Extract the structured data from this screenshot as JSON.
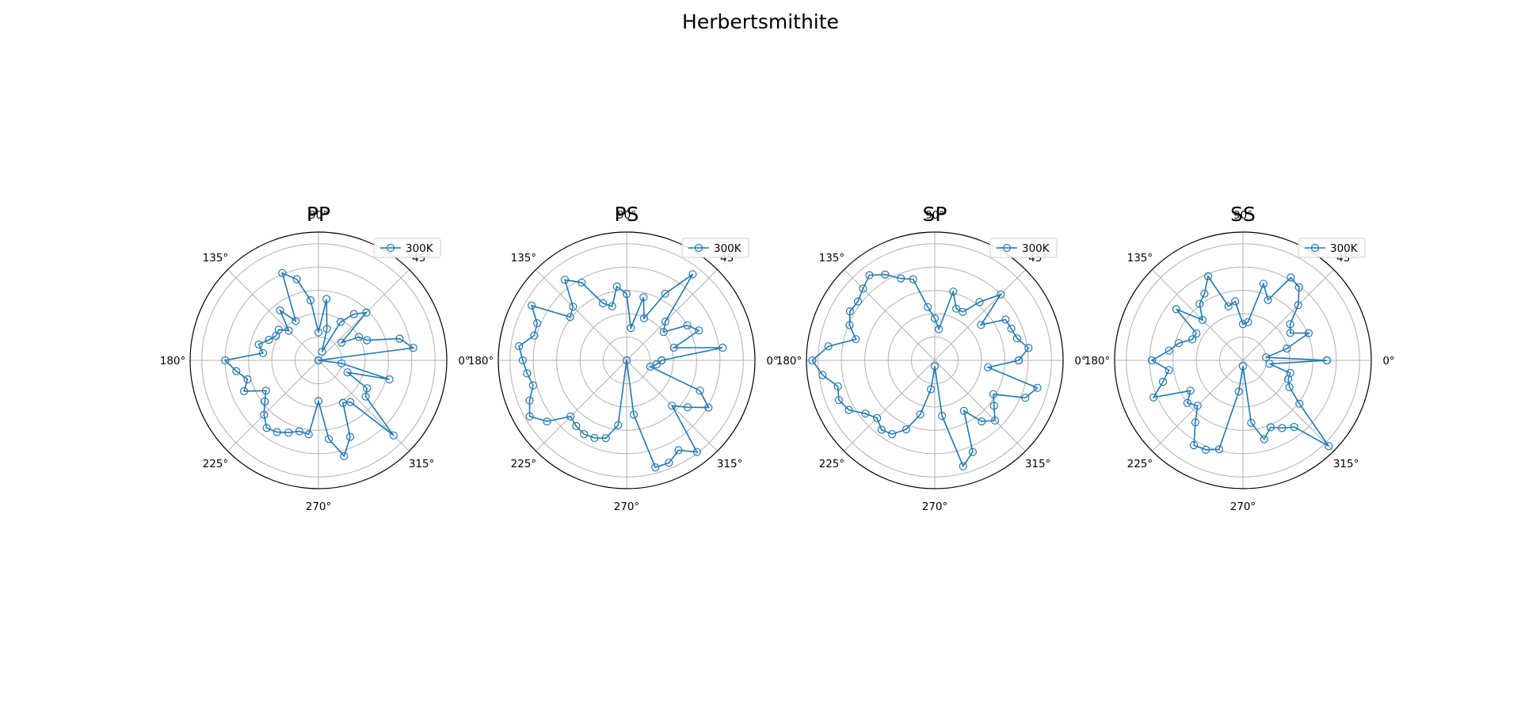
{
  "figure": {
    "title": "Herbertsmithite"
  },
  "chart_data": [
    {
      "type": "line",
      "projection": "polar",
      "title": "PP",
      "theta_unit": "deg",
      "theta_tick_labels": [
        "0°",
        "45°",
        "90°",
        "135°",
        "180°",
        "225°",
        "270°",
        "315°"
      ],
      "rlim": [
        0,
        1.1
      ],
      "r_grid": [
        0.2,
        0.4,
        0.6,
        0.8,
        1.0
      ],
      "grid": true,
      "legend": {
        "loc": "upper right",
        "entries": [
          "300K"
        ]
      },
      "series": [
        {
          "name": "300K",
          "color": "#1f77b4",
          "marker": "open-circle",
          "theta": [
            0,
            7.5,
            15,
            22.5,
            30,
            37.5,
            45,
            52.5,
            60,
            67.5,
            75,
            82.5,
            90,
            97.5,
            105,
            112.5,
            120,
            127.5,
            135,
            142.5,
            150,
            157.5,
            165,
            172.5,
            180,
            187.5,
            195,
            202.5,
            210,
            217.5,
            225,
            232.5,
            240,
            247.5,
            255,
            262.5,
            270,
            277.5,
            285,
            292.5,
            300,
            307.5,
            315,
            322.5,
            330,
            337.5,
            345,
            352.5,
            360
          ],
          "r": [
            0.0,
            0.82,
            0.72,
            0.45,
            0.4,
            0.25,
            0.58,
            0.5,
            0.38,
            0.08,
            0.28,
            0.53,
            0.24,
            0.52,
            0.72,
            0.81,
            0.39,
            0.54,
            0.36,
            0.43,
            0.42,
            0.46,
            0.53,
            0.48,
            0.8,
            0.71,
            0.63,
            0.69,
            0.52,
            0.58,
            0.66,
            0.73,
            0.71,
            0.67,
            0.63,
            0.64,
            0.35,
            0.68,
            0.85,
            0.71,
            0.42,
            0.45,
            0.91,
            0.51,
            0.48,
            0.27,
            0.63,
            0.2,
            0.0
          ]
        }
      ]
    },
    {
      "type": "line",
      "projection": "polar",
      "title": "PS",
      "theta_unit": "deg",
      "theta_tick_labels": [
        "0°",
        "45°",
        "90°",
        "135°",
        "180°",
        "225°",
        "270°",
        "315°"
      ],
      "rlim": [
        0,
        1.1
      ],
      "r_grid": [
        0.2,
        0.4,
        0.6,
        0.8,
        1.0
      ],
      "grid": true,
      "legend": {
        "loc": "upper right",
        "entries": [
          "300K"
        ]
      },
      "series": [
        {
          "name": "300K",
          "color": "#1f77b4",
          "marker": "open-circle",
          "theta": [
            0,
            7.5,
            15,
            22.5,
            30,
            37.5,
            45,
            52.5,
            60,
            67.5,
            75,
            82.5,
            90,
            97.5,
            105,
            112.5,
            120,
            127.5,
            135,
            142.5,
            150,
            157.5,
            165,
            172.5,
            180,
            187.5,
            195,
            202.5,
            210,
            217.5,
            225,
            232.5,
            240,
            247.5,
            255,
            262.5,
            270,
            277.5,
            285,
            292.5,
            300,
            307.5,
            315,
            322.5,
            330,
            337.5,
            345,
            352.5,
            360
          ],
          "r": [
            0.3,
            0.83,
            0.42,
            0.67,
            0.6,
            0.4,
            0.47,
            0.93,
            0.66,
            0.39,
            0.56,
            0.28,
            0.57,
            0.64,
            0.48,
            0.53,
            0.77,
            0.87,
            0.65,
            0.61,
            0.94,
            0.83,
            0.82,
            0.93,
            0.89,
            0.86,
            0.83,
            0.9,
            0.96,
            0.86,
            0.68,
            0.71,
            0.73,
            0.72,
            0.69,
            0.56,
            0.0,
            0.47,
            0.95,
            0.95,
            0.89,
            0.99,
            0.55,
            0.66,
            0.81,
            0.68,
            0.21,
            0.26,
            0.3
          ]
        }
      ]
    },
    {
      "type": "line",
      "projection": "polar",
      "title": "SP",
      "theta_unit": "deg",
      "theta_tick_labels": [
        "0°",
        "45°",
        "90°",
        "135°",
        "180°",
        "225°",
        "270°",
        "315°"
      ],
      "rlim": [
        0,
        1.1
      ],
      "r_grid": [
        0.2,
        0.4,
        0.6,
        0.8,
        1.0
      ],
      "grid": true,
      "legend": {
        "loc": "upper right",
        "entries": [
          "300K"
        ]
      },
      "series": [
        {
          "name": "300K",
          "color": "#1f77b4",
          "marker": "open-circle",
          "theta": [
            0,
            7.5,
            15,
            22.5,
            30,
            37.5,
            45,
            52.5,
            60,
            67.5,
            75,
            82.5,
            90,
            97.5,
            105,
            112.5,
            120,
            127.5,
            135,
            142.5,
            150,
            157.5,
            165,
            172.5,
            180,
            187.5,
            195,
            202.5,
            210,
            217.5,
            225,
            232.5,
            240,
            247.5,
            255,
            262.5,
            270,
            277.5,
            285,
            292.5,
            300,
            307.5,
            315,
            322.5,
            330,
            337.5,
            345,
            352.5,
            360
          ],
          "r": [
            0.72,
            0.81,
            0.73,
            0.71,
            0.7,
            0.5,
            0.8,
            0.63,
            0.48,
            0.48,
            0.61,
            0.27,
            0.36,
            0.46,
            0.72,
            0.76,
            0.85,
            0.92,
            0.87,
            0.83,
            0.84,
            0.79,
            0.7,
            0.92,
            1.05,
            0.97,
            0.86,
            0.89,
            0.85,
            0.75,
            0.7,
            0.75,
            0.73,
            0.64,
            0.48,
            0.25,
            0.05,
            0.48,
            0.94,
            0.85,
            0.5,
            0.66,
            0.73,
            0.64,
            0.58,
            0.84,
            0.91,
            0.46,
            0.72
          ]
        }
      ]
    },
    {
      "type": "line",
      "projection": "polar",
      "title": "SS",
      "theta_unit": "deg",
      "theta_tick_labels": [
        "0°",
        "45°",
        "90°",
        "135°",
        "180°",
        "225°",
        "270°",
        "315°"
      ],
      "rlim": [
        0,
        1.1
      ],
      "r_grid": [
        0.2,
        0.4,
        0.6,
        0.8,
        1.0
      ],
      "grid": true,
      "legend": {
        "loc": "upper right",
        "entries": [
          "300K"
        ]
      },
      "series": [
        {
          "name": "300K",
          "color": "#1f77b4",
          "marker": "open-circle",
          "theta": [
            0,
            7.5,
            15,
            22.5,
            30,
            37.5,
            45,
            52.5,
            60,
            67.5,
            75,
            82.5,
            90,
            97.5,
            105,
            112.5,
            120,
            127.5,
            135,
            142.5,
            150,
            157.5,
            165,
            172.5,
            180,
            187.5,
            195,
            202.5,
            210,
            217.5,
            225,
            232.5,
            240,
            247.5,
            255,
            262.5,
            270,
            277.5,
            285,
            292.5,
            300,
            307.5,
            315,
            322.5,
            330,
            337.5,
            345,
            352.5,
            360
          ],
          "r": [
            0.72,
            0.2,
            0.39,
            0.61,
            0.47,
            0.51,
            0.67,
            0.79,
            0.82,
            0.56,
            0.68,
            0.33,
            0.31,
            0.51,
            0.48,
            0.78,
            0.66,
            0.61,
            0.49,
            0.72,
            0.46,
            0.47,
            0.57,
            0.64,
            0.78,
            0.64,
            0.71,
            0.83,
            0.52,
            0.6,
            0.55,
            0.67,
            0.84,
            0.83,
            0.79,
            0.27,
            0.05,
            0.54,
            0.7,
            0.62,
            0.67,
            0.72,
            1.04,
            0.61,
            0.46,
            0.42,
            0.42,
            0.23,
            0.72
          ]
        }
      ]
    }
  ]
}
